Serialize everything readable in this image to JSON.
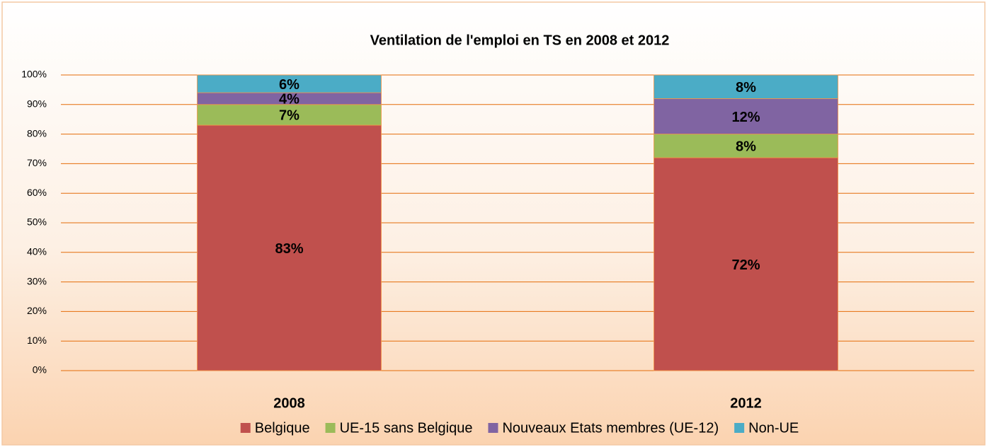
{
  "chart_data": {
    "type": "stacked_bar",
    "title": "Ventilation de l'emploi en TS en 2008 et 2012",
    "categories": [
      "2008",
      "2012"
    ],
    "series": [
      {
        "name": "Belgique",
        "color": "#c0504d",
        "values": [
          83,
          72
        ],
        "value_labels": [
          "83%",
          "72%"
        ]
      },
      {
        "name": "UE-15 sans Belgique",
        "color": "#9bbb59",
        "values": [
          7,
          8
        ],
        "value_labels": [
          "7%",
          "8%"
        ]
      },
      {
        "name": "Nouveaux Etats membres (UE-12)",
        "color": "#8064a2",
        "values": [
          4,
          12
        ],
        "value_labels": [
          "4%",
          "12%"
        ]
      },
      {
        "name": "Non-UE",
        "color": "#4bacc6",
        "values": [
          6,
          8
        ],
        "value_labels": [
          "6%",
          "8%"
        ]
      }
    ],
    "ylim": [
      0,
      100
    ],
    "yticks": [
      {
        "value": 0,
        "label": "0%"
      },
      {
        "value": 10,
        "label": "10%"
      },
      {
        "value": 20,
        "label": "20%"
      },
      {
        "value": 30,
        "label": "30%"
      },
      {
        "value": 40,
        "label": "40%"
      },
      {
        "value": 50,
        "label": "50%"
      },
      {
        "value": 60,
        "label": "60%"
      },
      {
        "value": 70,
        "label": "70%"
      },
      {
        "value": 80,
        "label": "80%"
      },
      {
        "value": 90,
        "label": "90%"
      },
      {
        "value": 100,
        "label": "100%"
      }
    ],
    "grid": true,
    "legend": "bottom"
  }
}
